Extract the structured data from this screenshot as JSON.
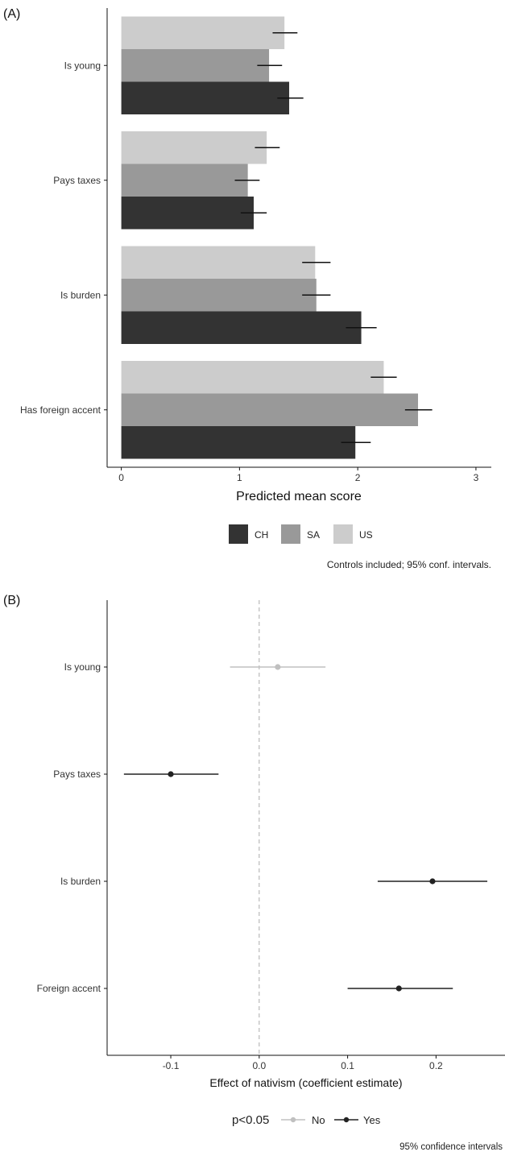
{
  "chart_data": [
    {
      "type": "bar",
      "orientation": "horizontal",
      "panel_label": "(A)",
      "categories": [
        "Is young",
        "Pays taxes",
        "Is burden",
        "Has foreign accent"
      ],
      "series": [
        {
          "name": "US",
          "color": "#cccccc",
          "values": [
            1.38,
            1.23,
            1.64,
            2.22
          ],
          "ci_low": [
            1.28,
            1.13,
            1.53,
            2.11
          ],
          "ci_high": [
            1.49,
            1.34,
            1.77,
            2.33
          ]
        },
        {
          "name": "SA",
          "color": "#999999",
          "values": [
            1.25,
            1.07,
            1.65,
            2.51
          ],
          "ci_low": [
            1.15,
            0.96,
            1.53,
            2.4
          ],
          "ci_high": [
            1.36,
            1.17,
            1.77,
            2.63
          ]
        },
        {
          "name": "CH",
          "color": "#333333",
          "values": [
            1.42,
            1.12,
            2.03,
            1.98
          ],
          "ci_low": [
            1.32,
            1.01,
            1.9,
            1.86
          ],
          "ci_high": [
            1.54,
            1.23,
            2.16,
            2.11
          ]
        }
      ],
      "xlabel": "Predicted mean score",
      "xlim": [
        -0.12,
        3.13
      ],
      "xticks": [
        0,
        1,
        2,
        3
      ],
      "grid": false,
      "legend": {
        "placement": "bottom",
        "entries": [
          "CH",
          "SA",
          "US"
        ]
      },
      "caption": "Controls included; 95% conf. intervals."
    },
    {
      "type": "scatter",
      "subtype": "coefficient-plot",
      "panel_label": "(B)",
      "categories": [
        "Is young",
        "Pays taxes",
        "Is burden",
        "Foreign accent"
      ],
      "estimates": [
        0.021,
        -0.1,
        0.196,
        0.158
      ],
      "ci_low": [
        -0.033,
        -0.153,
        0.134,
        0.1
      ],
      "ci_high": [
        0.075,
        -0.046,
        0.258,
        0.219
      ],
      "significant": [
        "No",
        "Yes",
        "Yes",
        "Yes"
      ],
      "colors": {
        "No": "#c0c0c0",
        "Yes": "#222222"
      },
      "reference_line": 0,
      "xlabel": "Effect of nativism (coefficient estimate)",
      "xlim": [
        -0.172,
        0.278
      ],
      "xticks": [
        -0.1,
        0,
        0.1,
        0.2
      ],
      "xticklabels": [
        "-0.1",
        "0.0",
        "0.1",
        "0.2"
      ],
      "grid": false,
      "legend": {
        "placement": "bottom",
        "title": "p<0.05",
        "entries": [
          "No",
          "Yes"
        ]
      },
      "caption": "95% confidence intervals"
    }
  ]
}
